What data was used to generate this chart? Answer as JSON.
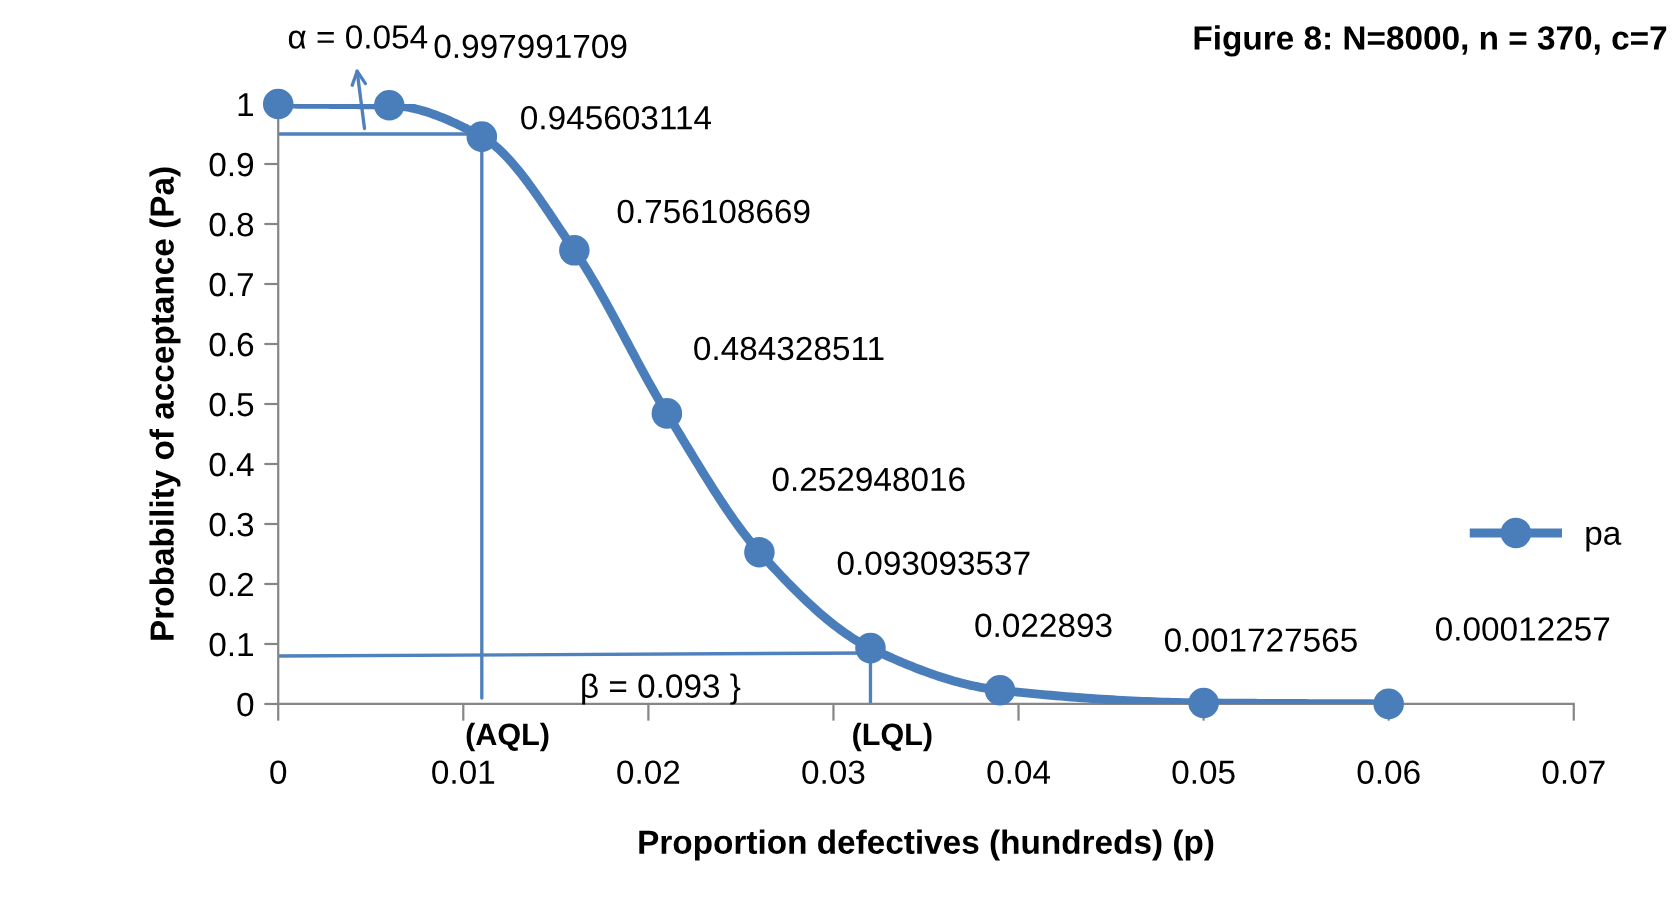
{
  "chart_data": {
    "type": "line",
    "title": "Figure 8: N=8000, n = 370, c=7",
    "xlabel": "Proportion defectives (hundreds) (p)",
    "ylabel": "Probability of acceptance (Pa)",
    "xlim": [
      0,
      0.07
    ],
    "xticks": [
      0,
      0.01,
      0.02,
      0.03,
      0.04,
      0.05,
      0.06,
      0.07
    ],
    "ylim": [
      0,
      1
    ],
    "yticks": [
      0,
      0.1,
      0.2,
      0.3,
      0.4,
      0.5,
      0.6,
      0.7,
      0.8,
      0.9,
      1
    ],
    "grid": false,
    "legend": "right",
    "series": [
      {
        "name": "pa",
        "color": "#4a7ebb",
        "marker": "circle",
        "x": [
          0,
          0.006,
          0.011,
          0.016,
          0.021,
          0.026,
          0.032,
          0.039,
          0.05,
          0.06
        ],
        "values": [
          1,
          0.997991709,
          0.945603114,
          0.756108669,
          0.484328511,
          0.252948016,
          0.093093537,
          0.022893,
          0.001727565,
          0.00012257
        ],
        "value_labels": [
          null,
          "0.997991709",
          "0.945603114",
          "0.756108669",
          "0.484328511",
          "0.252948016",
          "0.093093537",
          "0.022893",
          "0.001727565",
          "0.00012257"
        ]
      },
      {
        "color": "#4f81bd",
        "marker": "none",
        "x": [
          0,
          0.011
        ],
        "values": [
          0.95,
          0.95
        ]
      },
      {
        "color": "#4f81bd",
        "marker": "none",
        "x": [
          0.011,
          0.011
        ],
        "values": [
          0.01,
          0.945
        ]
      },
      {
        "color": "#4f81bd",
        "marker": "none",
        "x": [
          0,
          0.032
        ],
        "values": [
          0.08,
          0.085
        ]
      },
      {
        "color": "#4f81bd",
        "marker": "none",
        "x": [
          0.032,
          0.032
        ],
        "values": [
          0,
          0.093
        ]
      }
    ],
    "annotations": [
      {
        "text": "α = 0.054",
        "x": 0.0047,
        "y": 0.95
      },
      "β = 0.093 }",
      "(AQL)",
      "(LQL)"
    ]
  }
}
